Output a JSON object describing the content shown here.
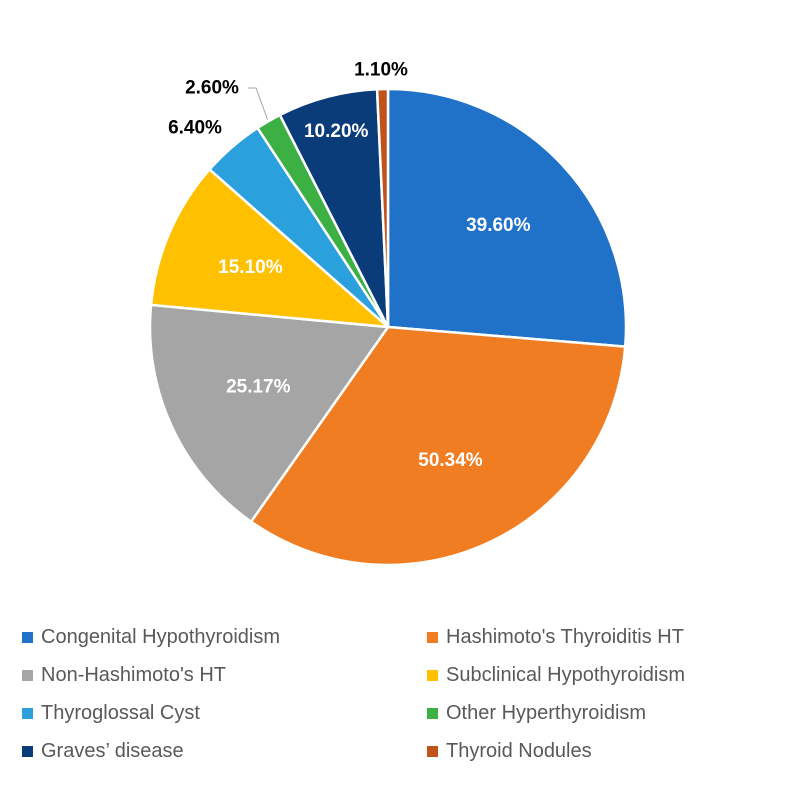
{
  "chart_data": {
    "type": "pie",
    "title": "",
    "slices": [
      {
        "label": "Congenital Hypothyroidism",
        "value": 39.6,
        "display": "39.60%",
        "color": "#1F72C8",
        "label_color": "#ffffff"
      },
      {
        "label": "Hashimoto's Thyroiditis HT",
        "value": 50.34,
        "display": "50.34%",
        "color": "#F07D22",
        "label_color": "#ffffff"
      },
      {
        "label": "Non-Hashimoto's HT",
        "value": 25.17,
        "display": "25.17%",
        "color": "#A5A5A5",
        "label_color": "#ffffff"
      },
      {
        "label": "Subclinical Hypothyroidism",
        "value": 15.1,
        "display": "15.10%",
        "color": "#FFC000",
        "label_color": "#ffffff"
      },
      {
        "label": "Thyroglossal Cyst",
        "value": 6.4,
        "display": "6.40%",
        "color": "#2AA0DC",
        "label_color": "#000000"
      },
      {
        "label": "Other Hyperthyroidism",
        "value": 2.6,
        "display": "2.60%",
        "color": "#3CB043",
        "label_color": "#000000"
      },
      {
        "label": "Graves’ disease",
        "value": 10.2,
        "display": "10.20%",
        "color": "#0B3C7A",
        "label_color": "#ffffff"
      },
      {
        "label": "Thyroid Nodules",
        "value": 1.1,
        "display": "1.10%",
        "color": "#C0531A",
        "label_color": "#000000"
      }
    ],
    "legend": {
      "position": "bottom",
      "columns": 2
    }
  }
}
